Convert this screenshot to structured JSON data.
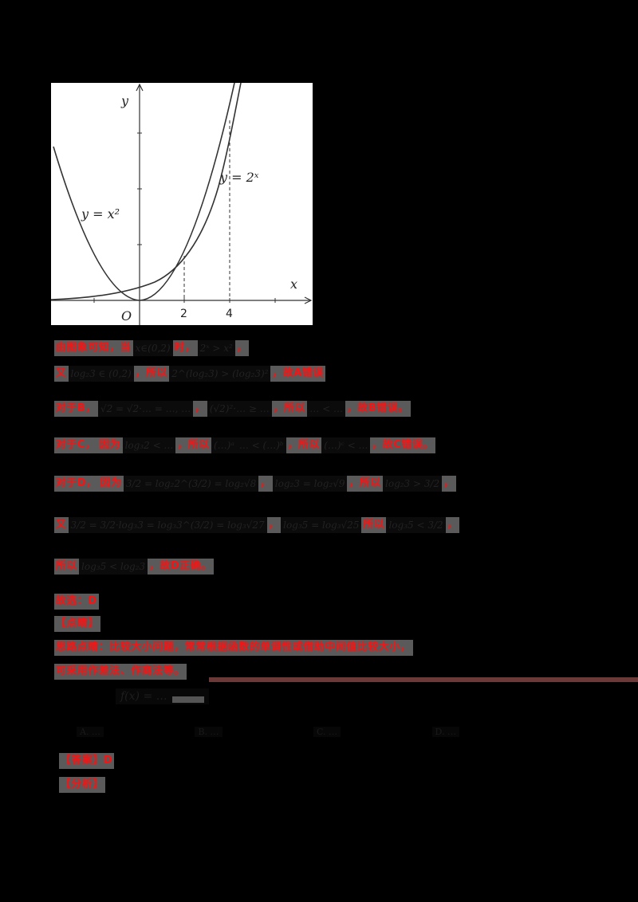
{
  "graph": {
    "y_axis_label": "y",
    "x_axis_label": "x",
    "origin_label": "O",
    "x_ticks": [
      "2",
      "4"
    ],
    "curve_labels": {
      "parabola": "y = x²",
      "exponential": "y = 2ˣ"
    }
  },
  "solution": {
    "lines": [
      {
        "id": "l1",
        "parts": [
          {
            "t": "red",
            "v": "由图象可知，当"
          },
          {
            "t": "math",
            "v": "x∈(0,2)"
          },
          {
            "t": "red",
            "v": "时，"
          },
          {
            "t": "math",
            "v": "2ˣ > x²"
          },
          {
            "t": "red",
            "v": "，"
          }
        ]
      },
      {
        "id": "l2",
        "parts": [
          {
            "t": "red",
            "v": "又"
          },
          {
            "t": "math",
            "v": "log₂3 ∈ (0,2)"
          },
          {
            "t": "red",
            "v": "，所以"
          },
          {
            "t": "math",
            "v": "2^(log₂3) > (log₂3)²"
          },
          {
            "t": "red",
            "v": "，故A错误"
          }
        ]
      },
      {
        "id": "l3",
        "parts": [
          {
            "t": "red",
            "v": "对于B，"
          },
          {
            "t": "math",
            "v": "√2 = √2·… = …, …"
          },
          {
            "t": "red",
            "v": "，"
          },
          {
            "t": "math",
            "v": "(√2)²·… ≥ …"
          },
          {
            "t": "red",
            "v": "，所以"
          },
          {
            "t": "math",
            "v": "… < …"
          },
          {
            "t": "red",
            "v": "，故B错误。"
          }
        ]
      },
      {
        "id": "l4",
        "parts": [
          {
            "t": "red",
            "v": "对于C，"
          },
          {
            "t": "red",
            "v": "因为"
          },
          {
            "t": "math",
            "v": "log₃2 < …"
          },
          {
            "t": "red",
            "v": "，所以"
          },
          {
            "t": "math",
            "v": "(…)ᵃ"
          },
          {
            "t": "math",
            "v": "… < (…)ᵇ"
          },
          {
            "t": "red",
            "v": "，所以"
          },
          {
            "t": "math",
            "v": "(…)ᶜ < …"
          },
          {
            "t": "red",
            "v": "，故C错误。"
          }
        ]
      },
      {
        "id": "l5",
        "parts": [
          {
            "t": "red",
            "v": "对于D，"
          },
          {
            "t": "red",
            "v": "因为"
          },
          {
            "t": "math",
            "v": "3/2 = log₂2^(3/2) = log₂√8"
          },
          {
            "t": "red",
            "v": "，"
          },
          {
            "t": "math",
            "v": "log₂3 = log₂√9"
          },
          {
            "t": "red",
            "v": "，所以"
          },
          {
            "t": "math",
            "v": "log₂3 > 3/2"
          },
          {
            "t": "red",
            "v": "，"
          }
        ]
      },
      {
        "id": "l6",
        "parts": [
          {
            "t": "red",
            "v": "又"
          },
          {
            "t": "math",
            "v": "3/2 = 3/2·log₃3 = log₃3^(3/2) = log₃√27"
          },
          {
            "t": "red",
            "v": "，"
          },
          {
            "t": "math",
            "v": "log₃5 = log₃√25"
          },
          {
            "t": "red",
            "v": "所以"
          },
          {
            "t": "math",
            "v": "log₃5 < 3/2"
          },
          {
            "t": "red",
            "v": "，"
          }
        ]
      },
      {
        "id": "l7",
        "parts": [
          {
            "t": "red",
            "v": "所以"
          },
          {
            "t": "math",
            "v": "log₃5 < log₂3"
          },
          {
            "t": "red",
            "v": "，故D正确。"
          }
        ]
      }
    ],
    "answer_line": "故选：D",
    "comment_header": "【点睛】",
    "comment_lines": [
      "思路点睛：比较大小问题，常常根据函数的单调性或借助中间值比较大小，",
      "可采用作差法、作商法等。"
    ]
  },
  "next_question": {
    "formula": "f(x) = …",
    "options": [
      "A. …",
      "B. …",
      "C. …",
      "D. …"
    ],
    "answer_label": "【答案】D",
    "analysis_label": "【分析】"
  },
  "colors": {
    "background": "#000000",
    "highlight_text": "#ff1010",
    "highlight_box": "#5a5a5a",
    "rule": "#6b3a38"
  }
}
